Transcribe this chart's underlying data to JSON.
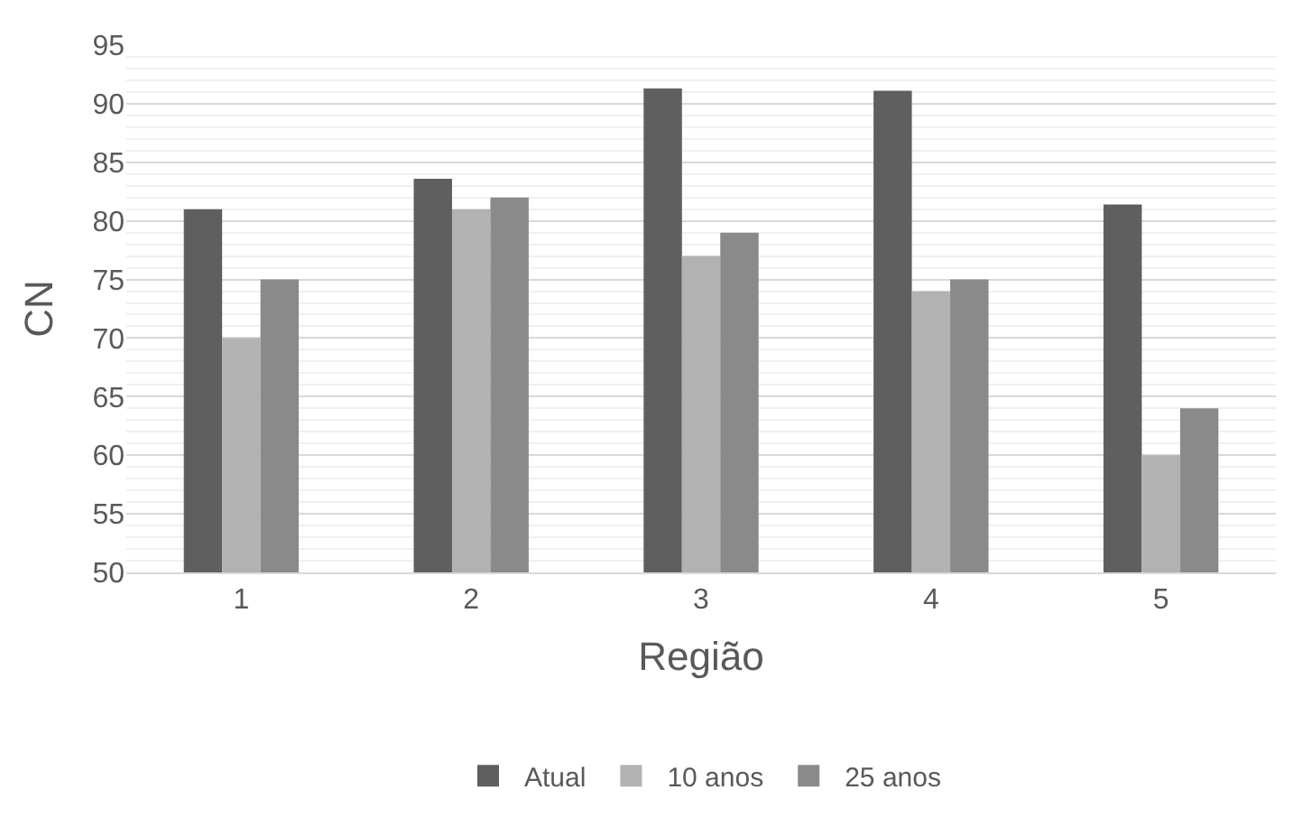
{
  "chart_data": {
    "type": "bar",
    "xlabel": "Região",
    "ylabel": "CN",
    "categories": [
      "1",
      "2",
      "3",
      "4",
      "5"
    ],
    "series": [
      {
        "name": "Atual",
        "color": "#5f5f5f",
        "values": [
          81,
          83.6,
          91.3,
          91.1,
          81.4
        ]
      },
      {
        "name": "10 anos",
        "color": "#b2b2b2",
        "values": [
          70,
          81,
          77,
          74,
          60
        ]
      },
      {
        "name": "25 anos",
        "color": "#8a8a8a",
        "values": [
          75,
          82,
          79,
          75,
          64
        ]
      }
    ],
    "ylim": [
      50,
      95
    ],
    "yticks": [
      50,
      55,
      60,
      65,
      70,
      75,
      80,
      85,
      90,
      95
    ],
    "grid": "y",
    "legend": "bottom"
  }
}
